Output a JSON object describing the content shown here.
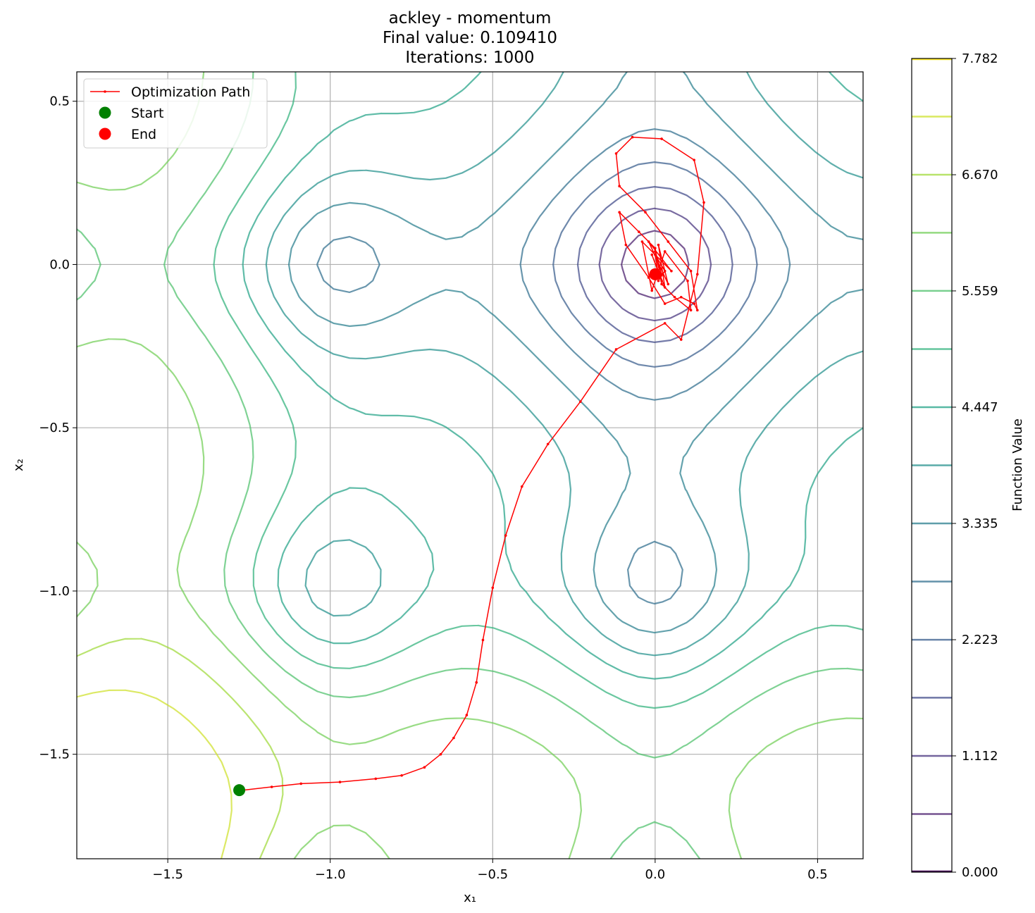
{
  "chart_data": {
    "type": "contour",
    "function": "ackley",
    "title_lines": [
      "ackley - momentum",
      "Final value: 0.109410",
      "Iterations: 1000"
    ],
    "xlabel": "x₁",
    "ylabel": "x₂",
    "xlim": [
      -1.78,
      0.64
    ],
    "ylim": [
      -1.82,
      0.59
    ],
    "x_ticks": [
      -1.5,
      -1.0,
      -0.5,
      0.0,
      0.5
    ],
    "x_tick_labels": [
      "−1.5",
      "−1.0",
      "−0.5",
      "0.0",
      "0.5"
    ],
    "y_ticks": [
      0.5,
      0.0,
      -0.5,
      -1.0,
      -1.5
    ],
    "y_tick_labels": [
      "0.5",
      "0.0",
      "−0.5",
      "−1.0",
      "−1.5"
    ],
    "grid": true,
    "contour_levels": [
      0.556,
      1.112,
      1.668,
      2.223,
      2.779,
      3.335,
      3.891,
      4.447,
      5.003,
      5.559,
      6.115,
      6.67,
      7.226
    ],
    "colorbar": {
      "label": "Function Value",
      "min": 0.0,
      "max": 7.782,
      "ticks": [
        0.0,
        1.112,
        2.223,
        3.335,
        4.447,
        5.559,
        6.67,
        7.782
      ],
      "tick_labels": [
        "0.000",
        "1.112",
        "2.223",
        "3.335",
        "4.447",
        "5.559",
        "6.670",
        "7.782"
      ]
    },
    "legend": {
      "placement": "upper-left",
      "entries": [
        "Optimization Path",
        "Start",
        "End"
      ]
    },
    "path": {
      "name": "Optimization Path",
      "color": "#ff0000",
      "x": [
        -1.27,
        -1.18,
        -1.09,
        -0.97,
        -0.86,
        -0.78,
        -0.71,
        -0.66,
        -0.62,
        -0.58,
        -0.55,
        -0.53,
        -0.5,
        -0.46,
        -0.41,
        -0.33,
        -0.23,
        -0.12,
        0.03,
        0.08,
        0.13,
        0.15,
        0.12,
        0.02,
        -0.07,
        -0.12,
        -0.11,
        -0.03,
        0.04,
        0.11,
        0.13,
        0.12,
        0.08,
        0.03,
        -0.02,
        -0.09,
        -0.11,
        -0.05,
        0.0,
        0.02,
        0.06,
        0.11,
        0.1,
        0.03,
        -0.01,
        -0.04,
        0.05,
        -0.02,
        0.04,
        0.01,
        0.03,
        -0.01,
        0.02,
        0.0,
        0.02,
        0.01,
        0.03,
        0.0,
        0.01
      ],
      "y": [
        -1.61,
        -1.6,
        -1.59,
        -1.585,
        -1.575,
        -1.565,
        -1.54,
        -1.5,
        -1.45,
        -1.38,
        -1.28,
        -1.15,
        -0.99,
        -0.83,
        -0.68,
        -0.55,
        -0.42,
        -0.26,
        -0.18,
        -0.23,
        -0.03,
        0.19,
        0.32,
        0.385,
        0.39,
        0.34,
        0.24,
        0.16,
        0.07,
        -0.02,
        -0.14,
        -0.12,
        -0.1,
        -0.12,
        -0.04,
        0.06,
        0.16,
        0.1,
        0.05,
        -0.06,
        -0.1,
        -0.14,
        -0.05,
        0.04,
        -0.08,
        0.07,
        -0.02,
        0.07,
        -0.06,
        0.06,
        -0.07,
        0.03,
        -0.05,
        0.04,
        -0.03,
        -0.05,
        -0.02,
        0.03,
        -0.03
      ]
    },
    "start": {
      "name": "Start",
      "x": -1.28,
      "y": -1.61,
      "color": "#008000"
    },
    "end": {
      "name": "End",
      "x": 0.0,
      "y": -0.03,
      "color": "#ff0000"
    }
  }
}
